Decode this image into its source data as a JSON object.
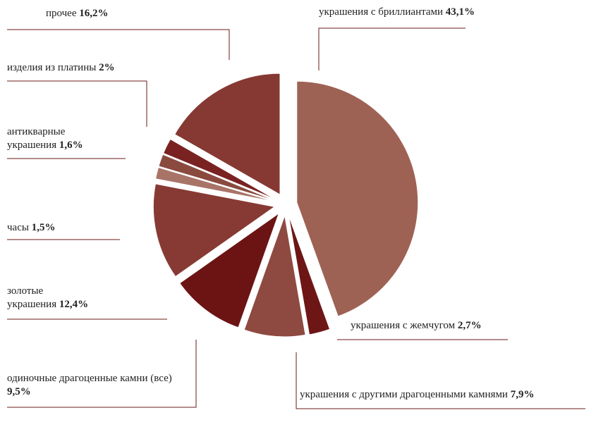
{
  "chart_data": {
    "type": "pie",
    "categories": [
      "украшения с бриллиантами",
      "украшения с жемчугом",
      "украшения с другими драгоценными камнями",
      "одиночные драгоценные камни (все)",
      "золотые украшения",
      "часы",
      "антикварные украшения",
      "изделия из платины",
      "прочее"
    ],
    "values": [
      43.1,
      2.7,
      7.9,
      9.5,
      12.4,
      1.5,
      1.6,
      2,
      16.2
    ],
    "value_labels": [
      "43,1%",
      "2,7%",
      "7,9%",
      "9,5%",
      "12,4%",
      "1,5%",
      "1,6%",
      "2%",
      "16,2%"
    ],
    "colors": [
      "#9e6254",
      "#6e1616",
      "#8e4a40",
      "#6c1414",
      "#873a33",
      "#a97468",
      "#8a4a3e",
      "#7a2222",
      "#853932"
    ]
  }
}
